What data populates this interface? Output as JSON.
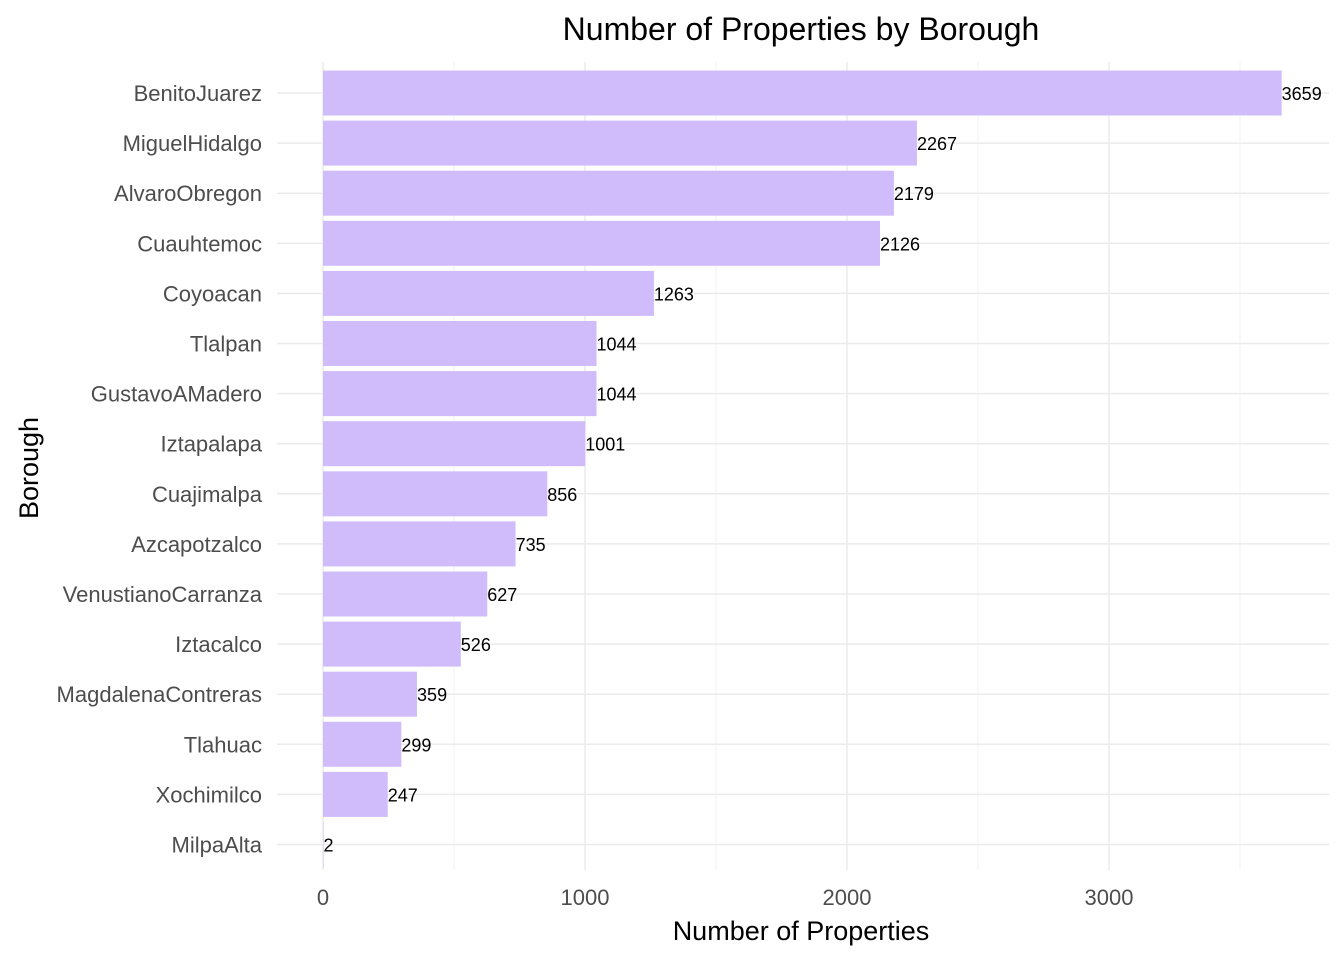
{
  "chart_data": {
    "type": "bar",
    "orientation": "horizontal",
    "title": "Number of Properties by Borough",
    "xlabel": "Number of Properties",
    "ylabel": "Borough",
    "xlim": [
      0,
      3800
    ],
    "x_ticks": [
      0,
      1000,
      2000,
      3000
    ],
    "grid": true,
    "bar_color": "#d1bcfb",
    "categories": [
      "BenitoJuarez",
      "MiguelHidalgo",
      "AlvaroObregon",
      "Cuauhtemoc",
      "Coyoacan",
      "Tlalpan",
      "GustavoAMadero",
      "Iztapalapa",
      "Cuajimalpa",
      "Azcapotzalco",
      "VenustianoCarranza",
      "Iztacalco",
      "MagdalenaContreras",
      "Tlahuac",
      "Xochimilco",
      "MilpaAlta"
    ],
    "values": [
      3659,
      2267,
      2179,
      2126,
      1263,
      1044,
      1044,
      1001,
      856,
      735,
      627,
      526,
      359,
      299,
      247,
      2
    ]
  }
}
